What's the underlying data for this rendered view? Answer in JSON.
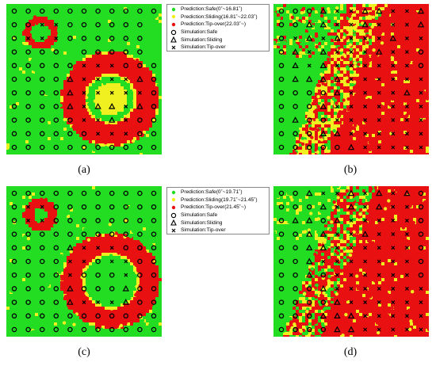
{
  "captions": {
    "a": "(a)",
    "b": "(b)",
    "c": "(c)",
    "d": "(d)"
  },
  "legends": {
    "top": [
      {
        "label": "Prediction:Safe(0˚~16.81˚)",
        "marker": "dot",
        "color": "#22dd22"
      },
      {
        "label": "Prediction:Sliding(16.81˚~22.03˚)",
        "marker": "dot",
        "color": "#f0f020"
      },
      {
        "label": "Prediction:Tip-over(22.03˚~)",
        "marker": "dot",
        "color": "#e81010"
      },
      {
        "label": "Simulation:Safe",
        "marker": "circle",
        "color": "#000000"
      },
      {
        "label": "Simulation:Sliding",
        "marker": "triangle",
        "color": "#000000"
      },
      {
        "label": "Simulation:Tip-over",
        "marker": "cross",
        "color": "#000000"
      }
    ],
    "bottom": [
      {
        "label": "Prediction:Safe(0˚~19.71˚)",
        "marker": "dot",
        "color": "#22dd22"
      },
      {
        "label": "Prediction:Sliding(19.71˚~21.45˚)",
        "marker": "dot",
        "color": "#f0f020"
      },
      {
        "label": "Prediction:Tip-over(21.45˚~)",
        "marker": "dot",
        "color": "#e81010"
      },
      {
        "label": "Simulation:Safe",
        "marker": "circle",
        "color": "#000000"
      },
      {
        "label": "Simulation:Sliding",
        "marker": "triangle",
        "color": "#000000"
      },
      {
        "label": "Simulation:Tip-over",
        "marker": "cross",
        "color": "#000000"
      }
    ]
  },
  "colors": {
    "safe": "#22dd22",
    "sliding": "#f0f020",
    "tipover": "#e81010",
    "marker": "#000000"
  },
  "chart_data": [
    {
      "panel": "a",
      "type": "scatter",
      "grid_size": 11,
      "axes_visible": false,
      "prediction_classes": [
        "Safe",
        "Sliding",
        "Tip-over"
      ],
      "simulation_grid": [
        "ooooooooooo",
        "ooxxoooooo.",
        "oxxxoooooo.",
        "oooo.ooooo.",
        "oooooxxxooo",
        "oooo^xxxx^o",
        "oooo^xxxxxo",
        "oooo^x^^x^o",
        "oooooxx^xoo",
        "ooooooxxxoo",
        "ooooooooooo"
      ]
    },
    {
      "panel": "b",
      "type": "scatter",
      "grid_size": 11,
      "axes_visible": false,
      "prediction_classes": [
        "Safe",
        "Sliding",
        "Tip-over"
      ],
      "simulation_grid": [
        "ooo^xx^^xx^",
        "oo^^xx^xxx^",
        "ox^x^xxx^xx",
        "o^x^xxx^xxo",
        "o^x^xxxxxxo",
        "o^^^^xxxxxx",
        "oooo^xxxx^x",
        "ooo^xxxxxxx",
        "o^ooxxxxxxx",
        "ooo^^xxxxxx",
        "ooooo^xxxxx"
      ]
    },
    {
      "panel": "c",
      "type": "scatter",
      "grid_size": 11,
      "axes_visible": false,
      "prediction_classes": [
        "Safe",
        "Sliding",
        "Tip-over"
      ],
      "simulation_grid": [
        "ooooooooooo",
        "oxxoooooooo",
        "oxxoooooooo",
        "ooooooooooo",
        "oooo^xxxooo",
        "ooooxxoxxoo",
        "ooooxoooxoo",
        "oooo^ooo^oo",
        "oooo^xxx^oo",
        "ooooooooooo",
        "ooooooooooo"
      ]
    },
    {
      "panel": "d",
      "type": "scatter",
      "grid_size": 11,
      "axes_visible": false,
      "prediction_classes": [
        "Safe",
        "Sliding",
        "Tip-over"
      ],
      "simulation_grid": [
        "oo^xx^x^x^o",
        "ooo^x^x^xxo",
        "o^^o^xxxxxo",
        "oo^^xx^xxxo",
        "oo^^xxxxxxo",
        "oo^xxxxxxxo",
        "oo^oxxxxxxo",
        "ooo^xxxxxxx",
        "oooo^xxxxxx",
        "ooo^^^xxxxx",
        "oooo^^xxxxx"
      ]
    }
  ]
}
